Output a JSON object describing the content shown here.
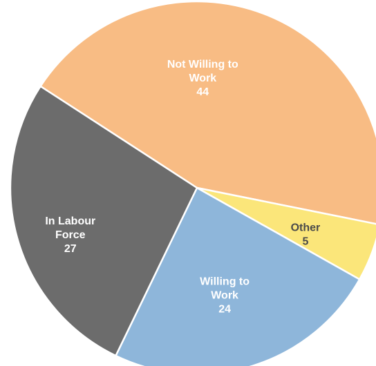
{
  "chart_data": {
    "type": "pie",
    "title": "",
    "slices": [
      {
        "label_lines": [
          "Not Willing to",
          "Work"
        ],
        "value": 44,
        "value_label": "44",
        "color": "#f8bc84",
        "label_color": "#ffffff"
      },
      {
        "label_lines": [
          "Other"
        ],
        "value": 5,
        "value_label": "5",
        "color": "#fbe67a",
        "label_color": "#4a4a4a"
      },
      {
        "label_lines": [
          "Willing to",
          "Work"
        ],
        "value": 24,
        "value_label": "24",
        "color": "#8eb6da",
        "label_color": "#ffffff"
      },
      {
        "label_lines": [
          "In Labour",
          "Force"
        ],
        "value": 27,
        "value_label": "27",
        "color": "#6c6c6c",
        "label_color": "#ffffff"
      }
    ],
    "start_angle_deg": -147,
    "direction": "clockwise",
    "slice_border_color": "#ffffff",
    "legend": "none"
  }
}
